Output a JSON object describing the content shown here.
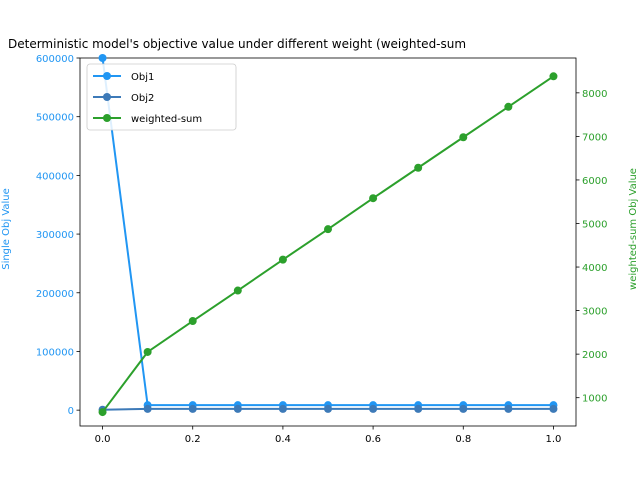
{
  "chart_data": {
    "type": "line",
    "title": "Deterministic model's objective value under different weight (weighted-sum",
    "xlabel": "",
    "ylabel_left": "Single Obj Value",
    "ylabel_right": "weighted-sum Obj Value",
    "x": [
      0.0,
      0.1,
      0.2,
      0.3,
      0.4,
      0.5,
      0.6,
      0.7,
      0.8,
      0.9,
      1.0
    ],
    "xlim": [
      -0.05,
      1.05
    ],
    "ylim_left": [
      -27000,
      600000
    ],
    "ylim_right": [
      350,
      8800
    ],
    "x_ticks": [
      "0.0",
      "0.2",
      "0.4",
      "0.6",
      "0.8",
      "1.0"
    ],
    "left_ticks": [
      "0",
      "100000",
      "200000",
      "300000",
      "400000",
      "500000",
      "600000"
    ],
    "right_ticks": [
      "1000",
      "2000",
      "3000",
      "4000",
      "5000",
      "6000",
      "7000",
      "8000"
    ],
    "legend_position": "upper-left",
    "series": [
      {
        "name": "Obj1",
        "axis": "left",
        "color": "#2196f3",
        "values": [
          600000,
          8500,
          8500,
          8500,
          8500,
          8500,
          8500,
          8500,
          8500,
          8500,
          8500
        ]
      },
      {
        "name": "Obj2",
        "axis": "left",
        "color": "#3d7ab8",
        "values": [
          670,
          2100,
          2100,
          2100,
          2100,
          2100,
          2100,
          2100,
          2100,
          2100,
          2100
        ]
      },
      {
        "name": "weighted-sum",
        "axis": "right",
        "color": "#2ca02c",
        "values": [
          670,
          2050,
          2760,
          3460,
          4170,
          4870,
          5580,
          6280,
          6980,
          7680,
          8380
        ]
      }
    ]
  },
  "colors": {
    "left_axis": "#2196f3",
    "right_axis": "#2ca02c"
  }
}
